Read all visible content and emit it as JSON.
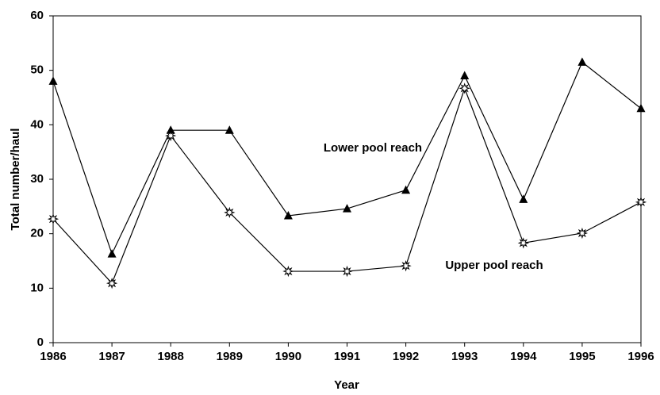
{
  "chart_data": {
    "type": "line",
    "x_label": "Year",
    "y_label": "Total number/haul",
    "x": [
      1986,
      1987,
      1988,
      1989,
      1990,
      1991,
      1992,
      1993,
      1994,
      1995,
      1996
    ],
    "series": [
      {
        "name": "Lower pool reach",
        "color": "#000000",
        "marker": "triangle",
        "values": [
          48.0,
          16.3,
          39.0,
          39.0,
          23.3,
          24.6,
          28.0,
          49.0,
          26.3,
          51.5,
          43.0
        ]
      },
      {
        "name": "Upper pool reach",
        "color": "#000000",
        "marker": "star",
        "values": [
          22.7,
          10.9,
          38.0,
          23.9,
          13.1,
          13.1,
          14.1,
          46.7,
          18.3,
          20.1,
          25.8
        ]
      }
    ],
    "xlim": [
      1986,
      1996
    ],
    "xticks": [
      1986,
      1987,
      1988,
      1989,
      1990,
      1991,
      1992,
      1993,
      1994,
      1995,
      1996
    ],
    "ylim": [
      0,
      60
    ],
    "yticks": [
      0,
      10,
      20,
      30,
      40,
      50,
      60
    ],
    "grid": false
  }
}
